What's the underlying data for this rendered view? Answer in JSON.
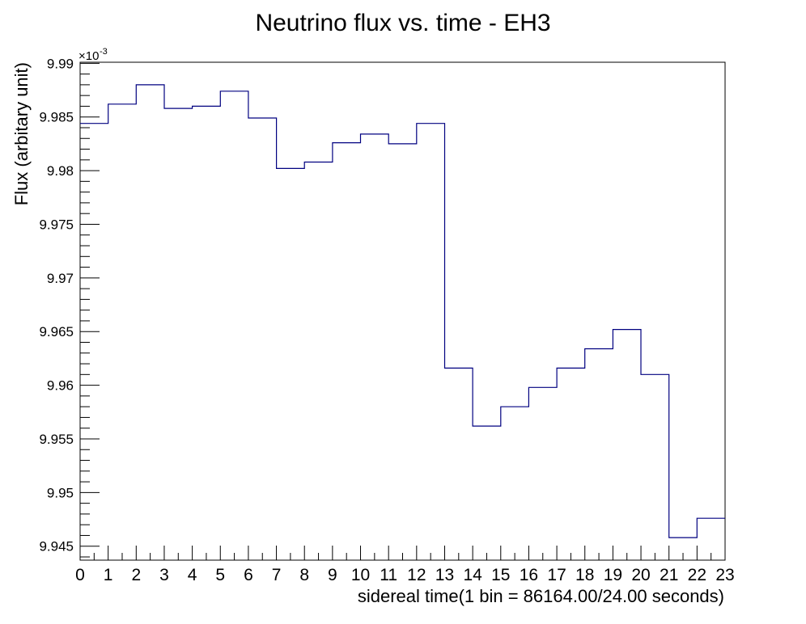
{
  "chart_data": {
    "type": "line",
    "style": "step-histogram",
    "title": "Neutrino flux vs. time - EH3",
    "xlabel": "sidereal time(1 bin = 86164.00/24.00 seconds)",
    "ylabel": "Flux (arbitary unit)",
    "y_multiplier_label": "×10",
    "y_multiplier_exponent": "-3",
    "xlim": [
      0,
      23
    ],
    "ylim": [
      9.9437,
      9.9901
    ],
    "x_ticks": [
      "0",
      "1",
      "2",
      "3",
      "4",
      "5",
      "6",
      "7",
      "8",
      "9",
      "10",
      "11",
      "12",
      "13",
      "14",
      "15",
      "16",
      "17",
      "18",
      "19",
      "20",
      "21",
      "22",
      "23"
    ],
    "y_ticks": [
      "9.945",
      "9.95",
      "9.955",
      "9.96",
      "9.965",
      "9.97",
      "9.975",
      "9.98",
      "9.985",
      "9.99"
    ],
    "line_color": "#000080",
    "grid": false,
    "legend": "none",
    "series": [
      {
        "bin_edges": [
          0,
          1,
          2,
          3,
          4,
          5,
          6,
          7,
          8,
          9,
          10,
          11,
          12,
          13,
          14,
          15,
          16,
          17,
          18,
          19,
          20,
          21,
          22,
          23
        ],
        "values": [
          9.9844,
          9.9862,
          9.988,
          9.9858,
          9.986,
          9.9874,
          9.9849,
          9.9802,
          9.9808,
          9.9826,
          9.9834,
          9.9825,
          9.9844,
          9.9616,
          9.9562,
          9.958,
          9.9598,
          9.9616,
          9.9634,
          9.9652,
          9.961,
          9.9458,
          9.9476
        ]
      }
    ]
  }
}
